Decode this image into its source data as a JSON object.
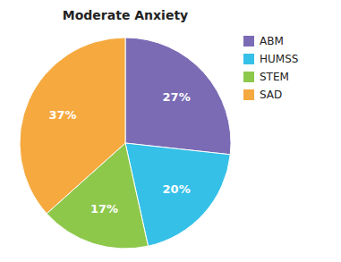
{
  "chart_data": {
    "type": "pie",
    "title": "Moderate Anxiety",
    "categories": [
      "ABM",
      "HUMSS",
      "STEM",
      "SAD"
    ],
    "values": [
      27,
      20,
      17,
      37
    ],
    "value_labels": [
      "27%",
      "20%",
      "17%",
      "37%"
    ],
    "colors": [
      "#7b6bb5",
      "#35c0e8",
      "#8dc84b",
      "#f5a93e"
    ],
    "data_labels": true,
    "legend": "upper right"
  }
}
